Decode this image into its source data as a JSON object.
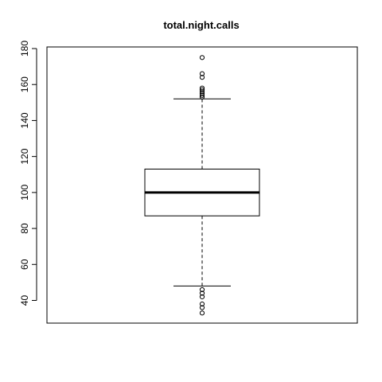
{
  "chart_data": {
    "type": "boxplot",
    "title": "total.night.calls",
    "xlabel": "",
    "ylabel": "",
    "ylim": [
      27.5,
      181
    ],
    "y_ticks": [
      40,
      60,
      80,
      100,
      120,
      140,
      160,
      180
    ],
    "y_tick_labels": [
      "40",
      "60",
      "80",
      "100",
      "120",
      "140",
      "160",
      "180"
    ],
    "grid": false,
    "series": [
      {
        "whisker_low": 48,
        "q1": 87,
        "median": 100,
        "q3": 113,
        "whisker_high": 152,
        "outliers": [
          33,
          36,
          38,
          42,
          44,
          46,
          153,
          154,
          155,
          156,
          157,
          158,
          164,
          166,
          175
        ]
      }
    ]
  }
}
